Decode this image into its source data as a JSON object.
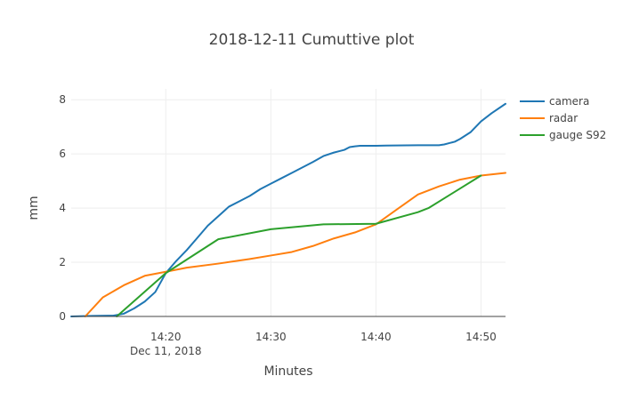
{
  "chart_data": {
    "type": "line",
    "title": "2018-12-11 Cumuttive plot",
    "xlabel": "Minutes",
    "ylabel": "mm",
    "x_axis": {
      "type": "time",
      "range": [
        "14:11:00",
        "14:52:20"
      ],
      "ticks": [
        {
          "value": "14:20:00",
          "label": "14:20",
          "sublabel": "Dec 11, 2018"
        },
        {
          "value": "14:30:00",
          "label": "14:30",
          "sublabel": ""
        },
        {
          "value": "14:40:00",
          "label": "14:40",
          "sublabel": ""
        },
        {
          "value": "14:50:00",
          "label": "14:50",
          "sublabel": ""
        }
      ]
    },
    "y_axis": {
      "range": [
        0,
        8.4
      ],
      "ticks": [
        0,
        2,
        4,
        6,
        8
      ]
    },
    "grid": true,
    "legend_position": "top-right",
    "series": [
      {
        "name": "camera",
        "color": "#1f77b4",
        "points": [
          [
            "14:11:00",
            0.0
          ],
          [
            "14:13:00",
            0.02
          ],
          [
            "14:14:30",
            0.03
          ],
          [
            "14:15:00",
            0.03
          ],
          [
            "14:16:00",
            0.1
          ],
          [
            "14:17:00",
            0.3
          ],
          [
            "14:18:00",
            0.55
          ],
          [
            "14:19:00",
            0.9
          ],
          [
            "14:20:00",
            1.6
          ],
          [
            "14:21:00",
            2.05
          ],
          [
            "14:22:00",
            2.45
          ],
          [
            "14:23:00",
            2.9
          ],
          [
            "14:24:00",
            3.35
          ],
          [
            "14:25:00",
            3.7
          ],
          [
            "14:26:00",
            4.05
          ],
          [
            "14:27:00",
            4.25
          ],
          [
            "14:28:00",
            4.45
          ],
          [
            "14:29:00",
            4.7
          ],
          [
            "14:30:00",
            4.9
          ],
          [
            "14:31:00",
            5.1
          ],
          [
            "14:32:00",
            5.3
          ],
          [
            "14:33:00",
            5.5
          ],
          [
            "14:34:00",
            5.7
          ],
          [
            "14:35:00",
            5.92
          ],
          [
            "14:36:00",
            6.05
          ],
          [
            "14:37:00",
            6.15
          ],
          [
            "14:37:30",
            6.25
          ],
          [
            "14:38:00",
            6.28
          ],
          [
            "14:38:30",
            6.3
          ],
          [
            "14:40:00",
            6.3
          ],
          [
            "14:41:00",
            6.31
          ],
          [
            "14:44:00",
            6.32
          ],
          [
            "14:46:00",
            6.32
          ],
          [
            "14:46:30",
            6.35
          ],
          [
            "14:47:00",
            6.4
          ],
          [
            "14:47:30",
            6.45
          ],
          [
            "14:48:00",
            6.55
          ],
          [
            "14:49:00",
            6.8
          ],
          [
            "14:50:00",
            7.2
          ],
          [
            "14:51:00",
            7.5
          ],
          [
            "14:52:20",
            7.85
          ]
        ]
      },
      {
        "name": "radar",
        "color": "#ff7f0e",
        "points": [
          [
            "14:12:20",
            0.0
          ],
          [
            "14:14:00",
            0.7
          ],
          [
            "14:16:00",
            1.15
          ],
          [
            "14:18:00",
            1.5
          ],
          [
            "14:20:00",
            1.65
          ],
          [
            "14:22:00",
            1.8
          ],
          [
            "14:25:00",
            1.95
          ],
          [
            "14:28:00",
            2.12
          ],
          [
            "14:30:00",
            2.25
          ],
          [
            "14:32:00",
            2.38
          ],
          [
            "14:34:00",
            2.6
          ],
          [
            "14:36:00",
            2.88
          ],
          [
            "14:38:00",
            3.1
          ],
          [
            "14:40:00",
            3.4
          ],
          [
            "14:42:00",
            3.95
          ],
          [
            "14:44:00",
            4.5
          ],
          [
            "14:46:00",
            4.8
          ],
          [
            "14:48:00",
            5.05
          ],
          [
            "14:50:00",
            5.2
          ],
          [
            "14:52:20",
            5.3
          ]
        ]
      },
      {
        "name": "gauge S92",
        "color": "#2ca02c",
        "points": [
          [
            "14:15:20",
            0.0
          ],
          [
            "14:20:00",
            1.6
          ],
          [
            "14:25:00",
            2.85
          ],
          [
            "14:30:00",
            3.22
          ],
          [
            "14:35:00",
            3.4
          ],
          [
            "14:40:00",
            3.42
          ],
          [
            "14:44:00",
            3.85
          ],
          [
            "14:45:00",
            4.0
          ],
          [
            "14:50:00",
            5.2
          ]
        ]
      }
    ]
  }
}
